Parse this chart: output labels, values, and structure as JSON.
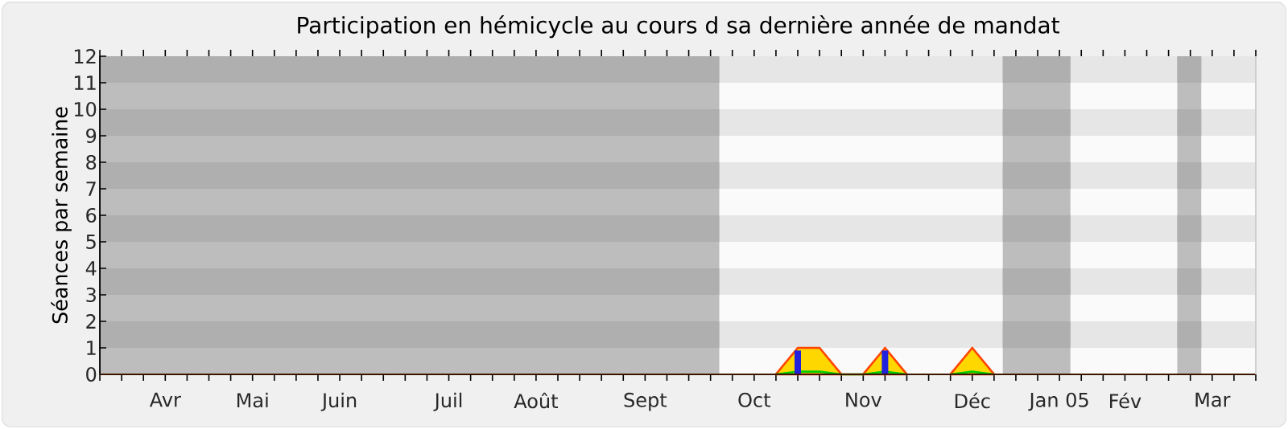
{
  "chart_data": {
    "type": "area",
    "title": "Participation en hémicycle au cours d sa dernière année de mandat",
    "ylabel": "Séances par semaine",
    "categories": [
      null,
      null,
      null,
      "Avr",
      null,
      null,
      null,
      "Mai",
      null,
      null,
      null,
      "Juin",
      null,
      null,
      null,
      null,
      "Juil",
      null,
      null,
      null,
      "Août",
      null,
      null,
      null,
      null,
      "Sept",
      null,
      null,
      null,
      null,
      "Oct",
      null,
      null,
      null,
      null,
      "Nov",
      null,
      null,
      null,
      null,
      "Déc",
      null,
      null,
      null,
      "Jan 05",
      null,
      null,
      "Fév",
      null,
      null,
      null,
      "Mar",
      null,
      null
    ],
    "ylim": [
      0,
      12
    ],
    "yticks": [
      0,
      1,
      2,
      3,
      4,
      5,
      6,
      7,
      8,
      9,
      10,
      11,
      12
    ],
    "series": [
      {
        "color": "#ffd700",
        "values": [
          null,
          null,
          null,
          null,
          null,
          null,
          null,
          null,
          null,
          null,
          null,
          null,
          null,
          null,
          null,
          null,
          null,
          null,
          null,
          null,
          null,
          null,
          null,
          null,
          null,
          null,
          null,
          null,
          null,
          null,
          null,
          0,
          1,
          1,
          0,
          0,
          1,
          0,
          null,
          0,
          1,
          0,
          null,
          null,
          null,
          null,
          null,
          null,
          null,
          null,
          null,
          null,
          null,
          null
        ]
      },
      {
        "type": "line",
        "color": "#00cc00",
        "values": [
          null,
          null,
          null,
          null,
          null,
          null,
          null,
          null,
          null,
          null,
          null,
          null,
          null,
          null,
          null,
          null,
          null,
          null,
          null,
          null,
          null,
          null,
          null,
          null,
          null,
          null,
          null,
          null,
          null,
          null,
          null,
          0,
          0.1,
          0.1,
          0,
          0,
          0.1,
          0,
          null,
          0,
          0.1,
          0,
          null,
          null,
          null,
          null,
          null,
          null,
          null,
          null,
          null,
          null,
          null,
          null
        ]
      },
      {
        "type": "bar",
        "color": "#2222dd",
        "values": [
          null,
          null,
          null,
          null,
          null,
          null,
          null,
          null,
          null,
          null,
          null,
          null,
          null,
          null,
          null,
          null,
          null,
          null,
          null,
          null,
          null,
          null,
          null,
          null,
          null,
          null,
          null,
          null,
          null,
          null,
          null,
          null,
          0.9,
          null,
          null,
          null,
          0.9,
          null,
          null,
          null,
          null,
          null,
          null,
          null,
          null,
          null,
          null,
          null,
          null,
          null,
          null,
          null,
          null,
          null
        ]
      }
    ]
  }
}
